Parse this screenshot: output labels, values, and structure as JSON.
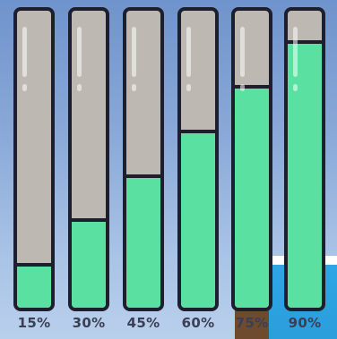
{
  "colors": {
    "empty": "#bdb8b1",
    "fill": "#5ae0a0",
    "outline": "#1d1f2e",
    "label": "#3b3f55"
  },
  "bars": [
    {
      "label": "15%",
      "level": 0.15
    },
    {
      "label": "30%",
      "level": 0.3
    },
    {
      "label": "45%",
      "level": 0.45
    },
    {
      "label": "60%",
      "level": 0.6
    },
    {
      "label": "75%",
      "level": 0.75
    },
    {
      "label": "90%",
      "level": 0.9
    }
  ]
}
